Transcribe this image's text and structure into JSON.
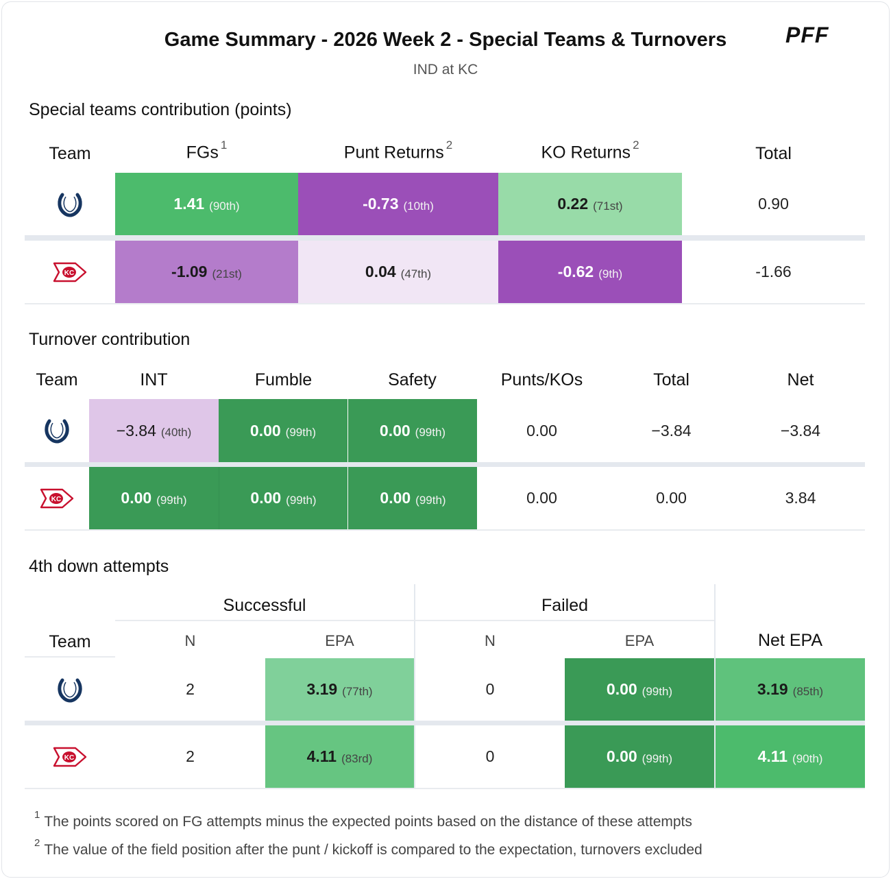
{
  "header": {
    "title": "Game Summary - 2026 Week 2 - Special Teams & Turnovers",
    "subtitle": "IND at KC",
    "brand": "PFF"
  },
  "special_teams": {
    "section_title": "Special teams contribution (points)",
    "columns": {
      "team": "Team",
      "fgs": "FGs",
      "fgs_note": "1",
      "punt_returns": "Punt Returns",
      "punt_returns_note": "2",
      "ko_returns": "KO Returns",
      "ko_returns_note": "2",
      "total": "Total"
    },
    "rows": [
      {
        "team_icon": "colts-horseshoe-icon",
        "fgs": {
          "value": "1.41",
          "rank": "(90th)",
          "color": "#4cbb6c"
        },
        "punt_returns": {
          "value": "-0.73",
          "rank": "(10th)",
          "color": "#9b4fb8"
        },
        "ko_returns": {
          "value": "0.22",
          "rank": "(71st)",
          "color": "#98dba8"
        },
        "total": "0.90"
      },
      {
        "team_icon": "chiefs-arrowhead-icon",
        "fgs": {
          "value": "-1.09",
          "rank": "(21st)",
          "color": "#b47ccb"
        },
        "punt_returns": {
          "value": "0.04",
          "rank": "(47th)",
          "color": "#f1e6f5"
        },
        "ko_returns": {
          "value": "-0.62",
          "rank": "(9th)",
          "color": "#9b4fb8"
        },
        "total": "-1.66"
      }
    ]
  },
  "turnovers": {
    "section_title": "Turnover contribution",
    "columns": {
      "team": "Team",
      "int": "INT",
      "fumble": "Fumble",
      "safety": "Safety",
      "punts_kos": "Punts/KOs",
      "total": "Total",
      "net": "Net"
    },
    "rows": [
      {
        "team_icon": "colts-horseshoe-icon",
        "int": {
          "value": "−3.84",
          "rank": "(40th)",
          "color": "#dfc6e8"
        },
        "fumble": {
          "value": "0.00",
          "rank": "(99th)",
          "color": "#3a9a56"
        },
        "safety": {
          "value": "0.00",
          "rank": "(99th)",
          "color": "#3a9a56"
        },
        "punts_kos": "0.00",
        "total": "−3.84",
        "net": "−3.84"
      },
      {
        "team_icon": "chiefs-arrowhead-icon",
        "int": {
          "value": "0.00",
          "rank": "(99th)",
          "color": "#3a9a56"
        },
        "fumble": {
          "value": "0.00",
          "rank": "(99th)",
          "color": "#3a9a56"
        },
        "safety": {
          "value": "0.00",
          "rank": "(99th)",
          "color": "#3a9a56"
        },
        "punts_kos": "0.00",
        "total": "0.00",
        "net": "3.84"
      }
    ]
  },
  "fourth_down": {
    "section_title": "4th down attempts",
    "groups": {
      "successful": "Successful",
      "failed": "Failed"
    },
    "columns": {
      "team": "Team",
      "n": "N",
      "epa": "EPA",
      "net_epa": "Net EPA"
    },
    "rows": [
      {
        "team_icon": "colts-horseshoe-icon",
        "succ_n": "2",
        "succ_epa": {
          "value": "3.19",
          "rank": "(77th)",
          "color": "#80d09a"
        },
        "fail_n": "0",
        "fail_epa": {
          "value": "0.00",
          "rank": "(99th)",
          "color": "#3a9a56"
        },
        "net_epa": {
          "value": "3.19",
          "rank": "(85th)",
          "color": "#5fc27c"
        }
      },
      {
        "team_icon": "chiefs-arrowhead-icon",
        "succ_n": "2",
        "succ_epa": {
          "value": "4.11",
          "rank": "(83rd)",
          "color": "#66c581"
        },
        "fail_n": "0",
        "fail_epa": {
          "value": "0.00",
          "rank": "(99th)",
          "color": "#3a9a56"
        },
        "net_epa": {
          "value": "4.11",
          "rank": "(90th)",
          "color": "#4cbb6c"
        }
      }
    ]
  },
  "footnotes": [
    {
      "mark": "1",
      "text": "The points scored on FG attempts minus the expected points based on the distance of these attempts"
    },
    {
      "mark": "2",
      "text": "The value of the field position after the punt / kickoff is compared to the expectation, turnovers excluded"
    }
  ]
}
